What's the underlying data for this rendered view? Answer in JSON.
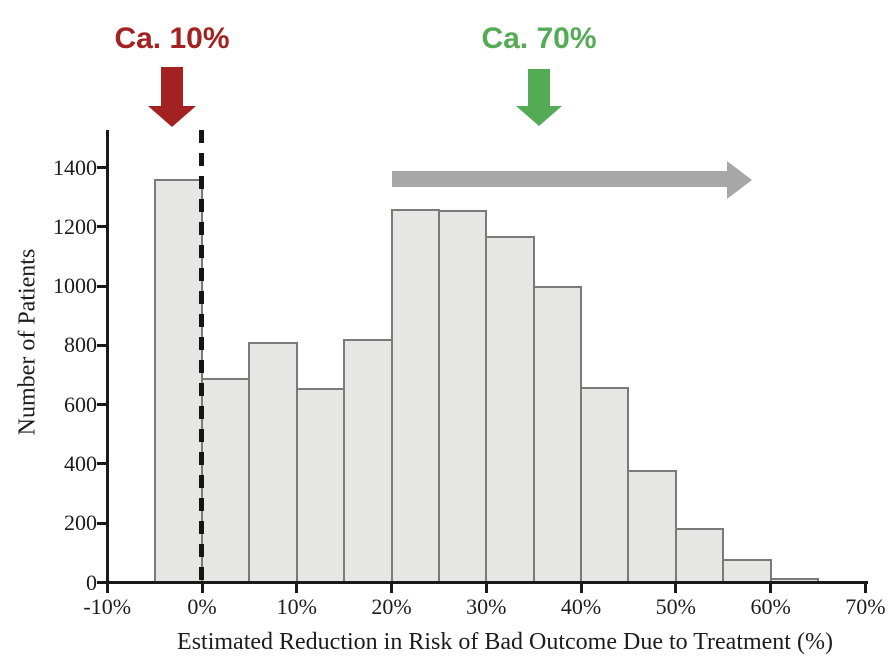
{
  "chart_data": {
    "type": "bar",
    "subtype": "histogram",
    "title": "",
    "xlabel": "Estimated Reduction in Risk of Bad Outcome Due to Treatment (%)",
    "ylabel": "Number of Patients",
    "xlim": [
      -10,
      70
    ],
    "ylim": [
      0,
      1500
    ],
    "bin_width_percent": 5,
    "x_ticks": [
      "-10%",
      "0%",
      "10%",
      "20%",
      "30%",
      "40%",
      "50%",
      "60%",
      "70%"
    ],
    "x_tick_values": [
      -10,
      0,
      10,
      20,
      30,
      40,
      50,
      60,
      70
    ],
    "y_ticks": [
      0,
      200,
      400,
      600,
      800,
      1000,
      1200,
      1400
    ],
    "bins": [
      {
        "range": "-5% to 0%",
        "start": -5,
        "end": 0,
        "count": 1360
      },
      {
        "range": "0% to 5%",
        "start": 0,
        "end": 5,
        "count": 690
      },
      {
        "range": "5% to 10%",
        "start": 5,
        "end": 10,
        "count": 810
      },
      {
        "range": "10% to 15%",
        "start": 10,
        "end": 15,
        "count": 655
      },
      {
        "range": "15% to 20%",
        "start": 15,
        "end": 20,
        "count": 820
      },
      {
        "range": "20% to 25%",
        "start": 20,
        "end": 25,
        "count": 1260
      },
      {
        "range": "25% to 30%",
        "start": 25,
        "end": 30,
        "count": 1255
      },
      {
        "range": "30% to 35%",
        "start": 30,
        "end": 35,
        "count": 1170
      },
      {
        "range": "35% to 40%",
        "start": 35,
        "end": 40,
        "count": 1000
      },
      {
        "range": "40% to 45%",
        "start": 40,
        "end": 45,
        "count": 660
      },
      {
        "range": "45% to 50%",
        "start": 45,
        "end": 50,
        "count": 380
      },
      {
        "range": "50% to 55%",
        "start": 50,
        "end": 55,
        "count": 185
      },
      {
        "range": "55% to 60%",
        "start": 55,
        "end": 60,
        "count": 80
      },
      {
        "range": "60% to 65%",
        "start": 60,
        "end": 65,
        "count": 15
      }
    ],
    "reference_line": {
      "x": 0,
      "style": "dashed-vertical"
    },
    "annotations": [
      {
        "label": "Ca. 10%",
        "color": "#a32121",
        "shape": "arrow-down",
        "points_to_x": -2.5
      },
      {
        "label": "Ca. 70%",
        "color": "#55aa55",
        "shape": "arrow-down",
        "points_to_x": 36
      },
      {
        "label": "",
        "color": "#a7a7a7",
        "shape": "arrow-right",
        "from_x": 20,
        "to_x": 58
      }
    ],
    "legend": null,
    "grid": false
  },
  "colors": {
    "bar_fill": "#e6e6e4",
    "bar_border": "#7a7a7a",
    "axis": "#1a1a1a",
    "dashed_line": "#151515",
    "annotation_red": "#a32121",
    "annotation_green": "#55aa55",
    "annotation_gray": "#a7a7a7"
  }
}
